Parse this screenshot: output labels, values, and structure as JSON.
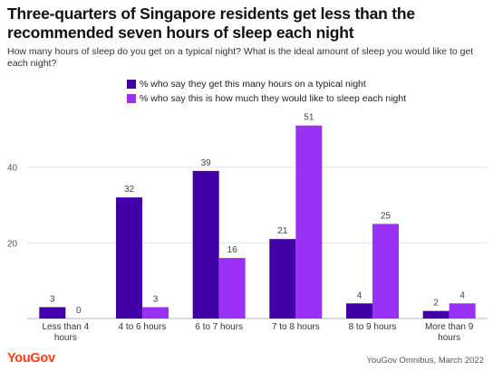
{
  "header": {
    "title": "Three-quarters of Singapore residents get less than the recommended seven hours of sleep each night",
    "subtitle": "How many hours of sleep do you get on a typical night? What is the ideal amount of sleep you would like to get each night?"
  },
  "footer": {
    "brand": "YouGov",
    "source": "YouGov Omnibus, March 2022"
  },
  "colors": {
    "series1": "#4400a8",
    "series2": "#9b31f5",
    "grid": "#e2e2e2",
    "brand": "#ff3d14"
  },
  "chart_data": {
    "type": "bar",
    "categories": [
      "Less than 4 hours",
      "4 to 6 hours",
      "6 to 7 hours",
      "7 to 8 hours",
      "8 to 9 hours",
      "More than 9 hours"
    ],
    "series": [
      {
        "name": "% who say they get this many hours on a typical night",
        "values": [
          3,
          32,
          39,
          21,
          4,
          2
        ]
      },
      {
        "name": "% who say this is how much they would like to sleep each night",
        "values": [
          0,
          3,
          16,
          51,
          25,
          4
        ]
      }
    ],
    "yticks": [
      20,
      40
    ],
    "ylim": [
      0,
      55
    ],
    "grid": true,
    "legend": "top"
  }
}
